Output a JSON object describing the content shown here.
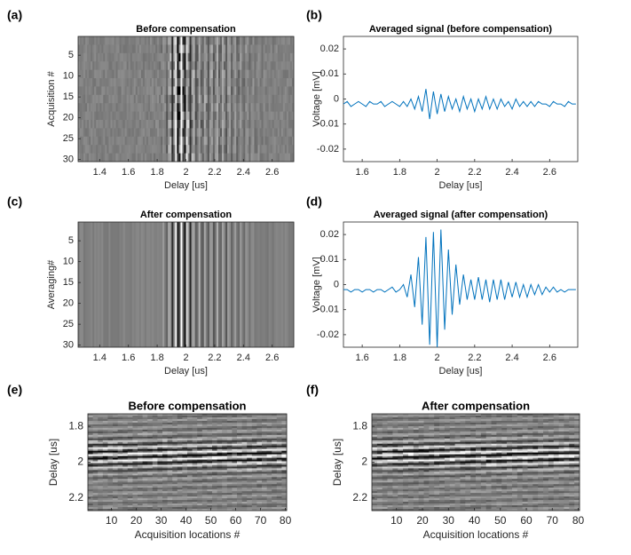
{
  "chart_data": [
    {
      "type": "heatmap",
      "panel_label": "(a)",
      "title": "Before compensation",
      "xlabel": "Delay [us]",
      "ylabel": "Acquisition #",
      "xlim": [
        1.25,
        2.75
      ],
      "xticks": [
        1.4,
        1.6,
        1.8,
        2,
        2.2,
        2.4,
        2.6
      ],
      "ylim": [
        0.5,
        30.5
      ],
      "yticks": [
        5,
        10,
        15,
        20,
        25,
        30
      ],
      "y_reversed": true
    },
    {
      "type": "line",
      "panel_label": "(b)",
      "title": "Averaged signal (before compensation)",
      "xlabel": "Delay [us]",
      "ylabel": "Voltage [mV]",
      "xlim": [
        1.5,
        2.75
      ],
      "xticks": [
        1.6,
        1.8,
        2,
        2.2,
        2.4,
        2.6
      ],
      "ylim": [
        -0.025,
        0.025
      ],
      "yticks": [
        -0.02,
        -0.01,
        0,
        0.01,
        0.02
      ],
      "color": "#0072bd",
      "x": [
        1.5,
        1.52,
        1.54,
        1.56,
        1.58,
        1.6,
        1.62,
        1.64,
        1.66,
        1.68,
        1.7,
        1.72,
        1.74,
        1.76,
        1.78,
        1.8,
        1.82,
        1.84,
        1.86,
        1.88,
        1.9,
        1.92,
        1.94,
        1.96,
        1.98,
        2.0,
        2.02,
        2.04,
        2.06,
        2.08,
        2.1,
        2.12,
        2.14,
        2.16,
        2.18,
        2.2,
        2.22,
        2.24,
        2.26,
        2.28,
        2.3,
        2.32,
        2.34,
        2.36,
        2.38,
        2.4,
        2.42,
        2.44,
        2.46,
        2.48,
        2.5,
        2.52,
        2.54,
        2.56,
        2.58,
        2.6,
        2.62,
        2.64,
        2.66,
        2.68,
        2.7,
        2.72,
        2.74
      ],
      "values": [
        -0.002,
        -0.001,
        -0.003,
        -0.002,
        -0.001,
        -0.002,
        -0.003,
        -0.001,
        -0.002,
        -0.002,
        -0.001,
        -0.003,
        -0.002,
        -0.001,
        -0.002,
        -0.003,
        -0.001,
        -0.003,
        0.0,
        -0.004,
        0.001,
        -0.005,
        0.004,
        -0.008,
        0.003,
        -0.006,
        0.002,
        -0.005,
        0.001,
        -0.004,
        0.0,
        -0.005,
        0.001,
        -0.004,
        0.0,
        -0.005,
        0.0,
        -0.004,
        0.001,
        -0.004,
        0.0,
        -0.004,
        0.0,
        -0.003,
        -0.001,
        -0.004,
        0.0,
        -0.003,
        -0.001,
        -0.003,
        -0.001,
        -0.003,
        -0.001,
        -0.002,
        -0.002,
        -0.003,
        -0.001,
        -0.002,
        -0.002,
        -0.003,
        -0.001,
        -0.002,
        -0.002
      ]
    },
    {
      "type": "heatmap",
      "panel_label": "(c)",
      "title": "After compensation",
      "xlabel": "Delay [us]",
      "ylabel": "Averaging#",
      "xlim": [
        1.25,
        2.75
      ],
      "xticks": [
        1.4,
        1.6,
        1.8,
        2,
        2.2,
        2.4,
        2.6
      ],
      "ylim": [
        0.5,
        30.5
      ],
      "yticks": [
        5,
        10,
        15,
        20,
        25,
        30
      ],
      "y_reversed": true
    },
    {
      "type": "line",
      "panel_label": "(d)",
      "title": "Averaged signal (after compensation)",
      "xlabel": "Delay [us]",
      "ylabel": "Voltage [mV]",
      "xlim": [
        1.5,
        2.75
      ],
      "xticks": [
        1.6,
        1.8,
        2,
        2.2,
        2.4,
        2.6
      ],
      "ylim": [
        -0.025,
        0.025
      ],
      "yticks": [
        -0.02,
        -0.01,
        0,
        0.01,
        0.02
      ],
      "color": "#0072bd",
      "x": [
        1.5,
        1.52,
        1.54,
        1.56,
        1.58,
        1.6,
        1.62,
        1.64,
        1.66,
        1.68,
        1.7,
        1.72,
        1.74,
        1.76,
        1.78,
        1.8,
        1.82,
        1.84,
        1.86,
        1.88,
        1.9,
        1.92,
        1.94,
        1.96,
        1.98,
        2.0,
        2.02,
        2.04,
        2.06,
        2.08,
        2.1,
        2.12,
        2.14,
        2.16,
        2.18,
        2.2,
        2.22,
        2.24,
        2.26,
        2.28,
        2.3,
        2.32,
        2.34,
        2.36,
        2.38,
        2.4,
        2.42,
        2.44,
        2.46,
        2.48,
        2.5,
        2.52,
        2.54,
        2.56,
        2.58,
        2.6,
        2.62,
        2.64,
        2.66,
        2.68,
        2.7,
        2.72,
        2.74
      ],
      "values": [
        -0.002,
        -0.002,
        -0.003,
        -0.002,
        -0.002,
        -0.003,
        -0.002,
        -0.002,
        -0.003,
        -0.002,
        -0.002,
        -0.003,
        -0.002,
        -0.001,
        -0.003,
        -0.002,
        0.0,
        -0.005,
        0.004,
        -0.009,
        0.011,
        -0.016,
        0.019,
        -0.024,
        0.021,
        -0.025,
        0.022,
        -0.018,
        0.014,
        -0.012,
        0.008,
        -0.008,
        0.004,
        -0.006,
        0.002,
        -0.006,
        0.003,
        -0.006,
        0.002,
        -0.007,
        0.002,
        -0.006,
        0.002,
        -0.006,
        0.001,
        -0.005,
        0.001,
        -0.005,
        0.0,
        -0.005,
        0.0,
        -0.004,
        0.0,
        -0.004,
        -0.001,
        -0.003,
        -0.001,
        -0.003,
        -0.002,
        -0.003,
        -0.002,
        -0.002,
        -0.002
      ]
    },
    {
      "type": "heatmap",
      "panel_label": "(e)",
      "title": "Before compensation",
      "xlabel": "Acquisition locations #",
      "ylabel": "Delay [us]",
      "xlim": [
        0.5,
        80.5
      ],
      "xticks": [
        10,
        20,
        30,
        40,
        50,
        60,
        70,
        80
      ],
      "ylim": [
        1.73,
        2.27
      ],
      "yticks": [
        1.8,
        2,
        2.2
      ],
      "y_reversed": true
    },
    {
      "type": "heatmap",
      "panel_label": "(f)",
      "title": "After compensation",
      "xlabel": "Acquisition locations #",
      "ylabel": "Delay [us]",
      "xlim": [
        0.5,
        80.5
      ],
      "xticks": [
        10,
        20,
        30,
        40,
        50,
        60,
        70,
        80
      ],
      "ylim": [
        1.73,
        2.27
      ],
      "yticks": [
        1.8,
        2,
        2.2
      ],
      "y_reversed": true
    }
  ]
}
